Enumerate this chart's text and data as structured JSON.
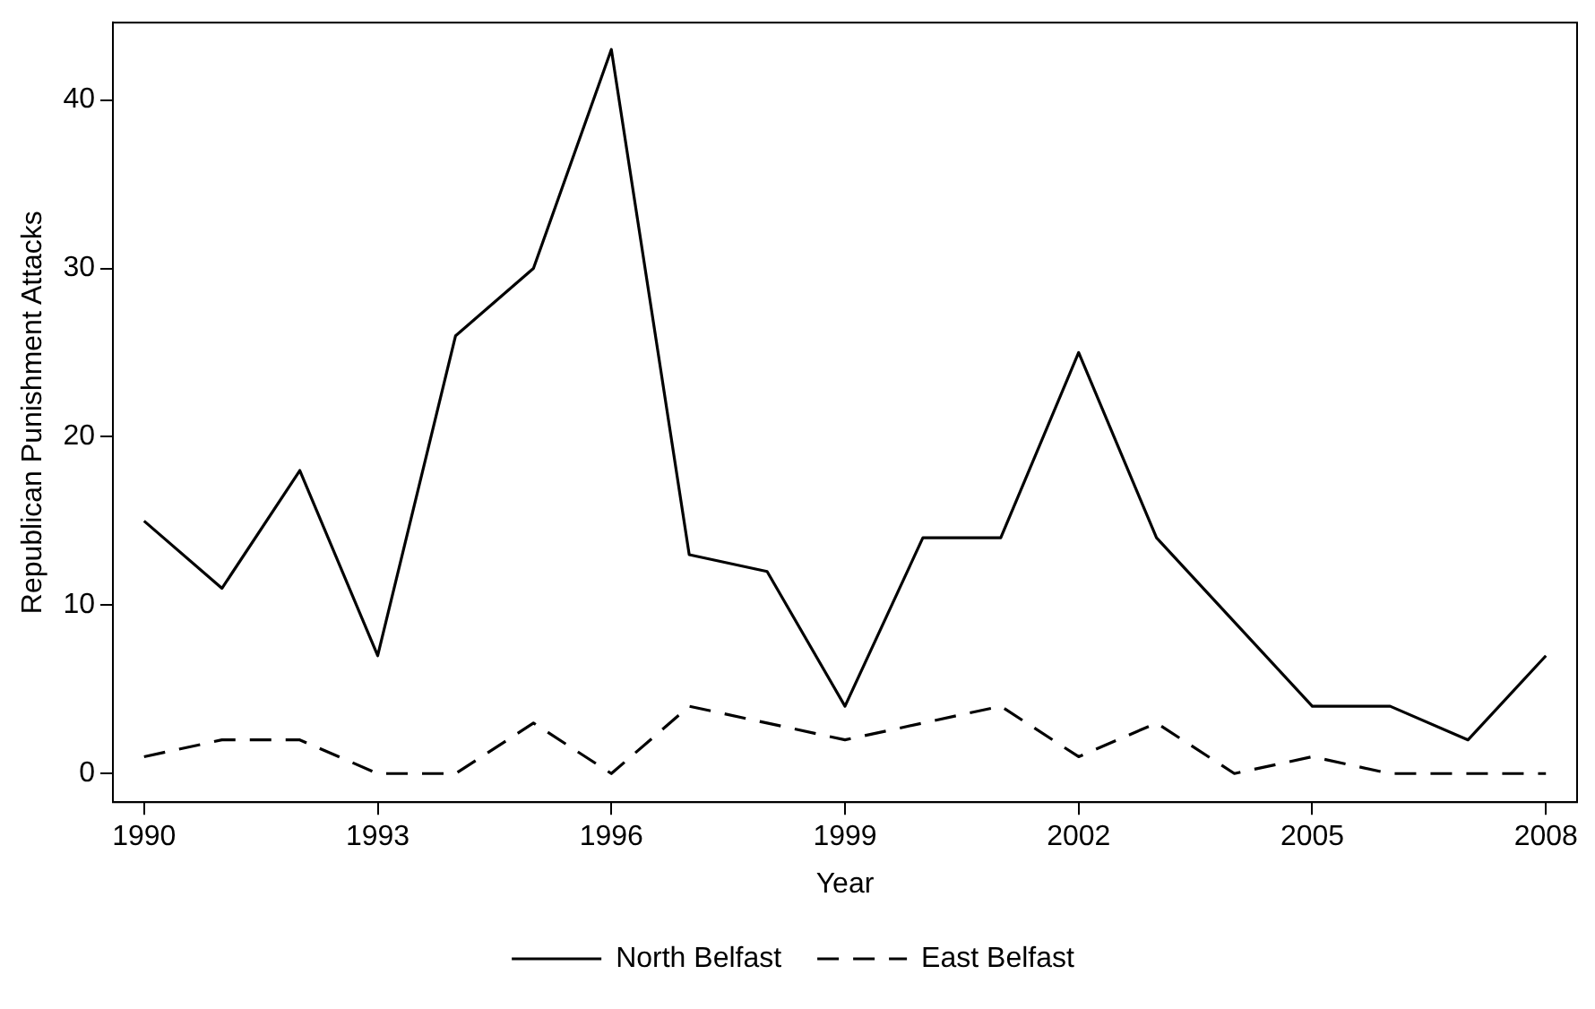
{
  "chart_data": {
    "type": "line",
    "xlabel": "Year",
    "ylabel": "Republican Punishment Attacks",
    "x": [
      1990,
      1991,
      1992,
      1993,
      1994,
      1995,
      1996,
      1997,
      1998,
      1999,
      2000,
      2001,
      2002,
      2003,
      2004,
      2005,
      2006,
      2007,
      2008
    ],
    "series": [
      {
        "name": "North Belfast",
        "color": "#000000",
        "line_style": "solid",
        "values": [
          15,
          11,
          18,
          7,
          26,
          30,
          43,
          13,
          12,
          4,
          14,
          14,
          25,
          14,
          9,
          4,
          4,
          2,
          7
        ]
      },
      {
        "name": "East Belfast",
        "color": "#000000",
        "line_style": "dashed",
        "values": [
          1,
          2,
          2,
          0,
          0,
          3,
          0,
          4,
          3,
          2,
          3,
          4,
          1,
          3,
          0,
          1,
          0,
          0,
          0
        ]
      }
    ],
    "xlim": [
      1989.6,
      2008.4
    ],
    "xticks": [
      1990,
      1993,
      1996,
      1999,
      2002,
      2005,
      2008
    ],
    "ylim": [
      -1.7,
      44.6
    ],
    "yticks": [
      0,
      10,
      20,
      30,
      40
    ],
    "grid": false,
    "legend": "bottom",
    "marker": "none"
  }
}
